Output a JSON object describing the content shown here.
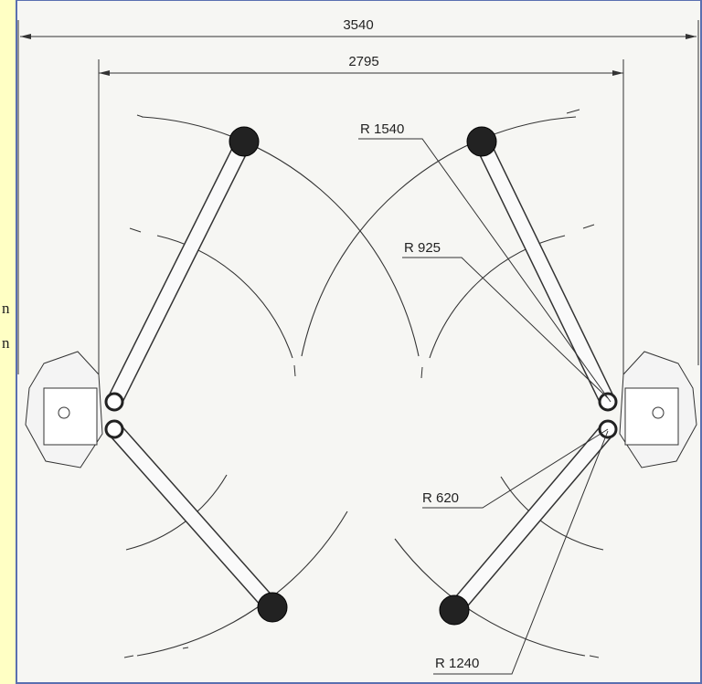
{
  "dimensions": {
    "overall_width": "3540",
    "column_span": "2795"
  },
  "radii": [
    {
      "label": "R 1540"
    },
    {
      "label": "R 925"
    },
    {
      "label": "R 620"
    },
    {
      "label": "R 1240"
    }
  ],
  "margin_text": [
    "n",
    "n"
  ]
}
